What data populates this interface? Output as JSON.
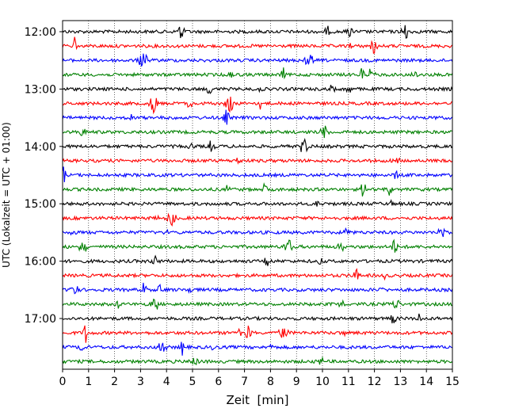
{
  "chart_data": {
    "type": "line",
    "title": "",
    "xlabel": "Zeit  [min]",
    "ylabel": "UTC (Lokalzeit = UTC + 01:00)",
    "xlim": [
      0,
      15
    ],
    "x_ticks": [
      "0",
      "1",
      "2",
      "3",
      "4",
      "5",
      "6",
      "7",
      "8",
      "9",
      "10",
      "11",
      "12",
      "13",
      "14",
      "15"
    ],
    "y_ticks": [
      "12:00",
      "13:00",
      "14:00",
      "15:00",
      "16:00",
      "17:00"
    ],
    "grid": "vertical dotted",
    "trace_interval_min": 15,
    "colors": [
      "#000000",
      "#ff0000",
      "#0000ff",
      "#008000"
    ],
    "traces": [
      {
        "start": "12:00",
        "color": "#000000"
      },
      {
        "start": "12:15",
        "color": "#ff0000"
      },
      {
        "start": "12:30",
        "color": "#0000ff"
      },
      {
        "start": "12:45",
        "color": "#008000"
      },
      {
        "start": "13:00",
        "color": "#000000"
      },
      {
        "start": "13:15",
        "color": "#ff0000"
      },
      {
        "start": "13:30",
        "color": "#0000ff"
      },
      {
        "start": "13:45",
        "color": "#008000"
      },
      {
        "start": "14:00",
        "color": "#000000"
      },
      {
        "start": "14:15",
        "color": "#ff0000"
      },
      {
        "start": "14:30",
        "color": "#0000ff"
      },
      {
        "start": "14:45",
        "color": "#008000"
      },
      {
        "start": "15:00",
        "color": "#000000"
      },
      {
        "start": "15:15",
        "color": "#ff0000"
      },
      {
        "start": "15:30",
        "color": "#0000ff"
      },
      {
        "start": "15:45",
        "color": "#008000"
      },
      {
        "start": "16:00",
        "color": "#000000"
      },
      {
        "start": "16:15",
        "color": "#ff0000"
      },
      {
        "start": "16:30",
        "color": "#0000ff"
      },
      {
        "start": "16:45",
        "color": "#008000"
      },
      {
        "start": "17:00",
        "color": "#000000"
      },
      {
        "start": "17:15",
        "color": "#ff0000"
      },
      {
        "start": "17:30",
        "color": "#0000ff"
      },
      {
        "start": "17:45",
        "color": "#008000"
      }
    ]
  }
}
